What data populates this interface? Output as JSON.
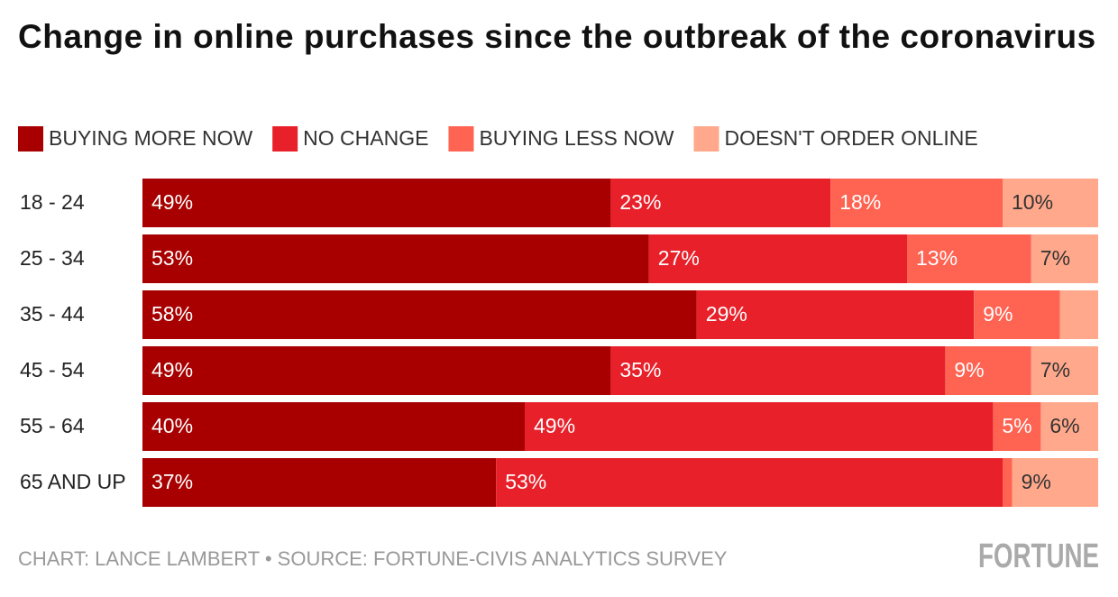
{
  "chart_data": {
    "type": "stacked-bar-horizontal",
    "title": "Change in online purchases since the outbreak of the coronavirus",
    "categories": [
      "18 - 24",
      "25 - 34",
      "35 - 44",
      "45 - 54",
      "55 - 64",
      "65 AND UP"
    ],
    "xlim": [
      0,
      100
    ],
    "series": [
      {
        "name": "BUYING MORE NOW",
        "color": "#a80000",
        "values": [
          49,
          53,
          58,
          49,
          40,
          37
        ],
        "value_labels": [
          "49%",
          "53%",
          "58%",
          "49%",
          "40%",
          "37%"
        ]
      },
      {
        "name": "NO CHANGE",
        "color": "#e8202a",
        "values": [
          23,
          27,
          29,
          35,
          49,
          53
        ],
        "value_labels": [
          "23%",
          "27%",
          "29%",
          "35%",
          "49%",
          "53%"
        ]
      },
      {
        "name": "BUYING LESS NOW",
        "color": "#ff6352",
        "values": [
          18,
          13,
          9,
          9,
          5,
          1
        ],
        "value_labels": [
          "18%",
          "13%",
          "9%",
          "9%",
          "5%",
          null
        ]
      },
      {
        "name": "DOESN'T ORDER ONLINE",
        "color": "#ffa88b",
        "values": [
          10,
          7,
          4,
          7,
          6,
          9
        ],
        "value_labels": [
          "10%",
          "7%",
          null,
          "7%",
          "6%",
          "9%"
        ]
      }
    ],
    "source": "CHART: LANCE LAMBERT • SOURCE: FORTUNE-CIVIS ANALYTICS SURVEY",
    "logo": "FORTUNE"
  }
}
